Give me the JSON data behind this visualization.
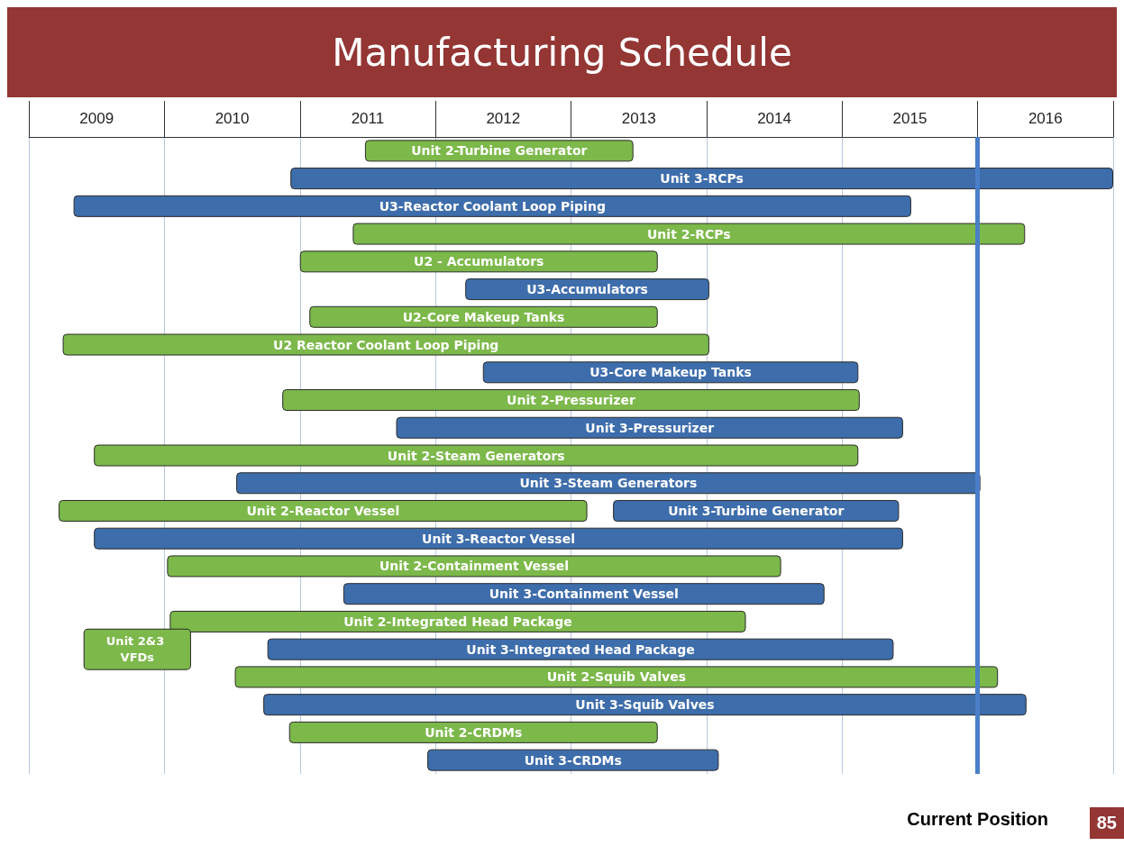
{
  "chart_data": {
    "type": "bar",
    "orientation": "horizontal",
    "title": "Manufacturing Schedule",
    "categories": [
      null,
      null,
      null,
      null,
      null,
      null,
      null,
      null,
      null,
      null,
      null,
      null,
      null,
      null,
      null,
      null,
      null,
      null,
      null,
      null,
      null,
      null,
      null
    ],
    "series": [
      {
        "color": "#7cb84a",
        "base": [
          2011.48,
          null,
          null,
          2011.39,
          2011.0,
          null,
          2011.07,
          2009.25,
          null,
          2010.87,
          null,
          2009.48,
          null,
          2009.22,
          null,
          2010.02,
          null,
          2010.04,
          2009.41,
          2010.52,
          null,
          2010.92,
          null
        ],
        "values": [
          1.98,
          null,
          null,
          4.96,
          2.64,
          null,
          2.57,
          4.77,
          null,
          4.26,
          null,
          5.64,
          null,
          3.9,
          null,
          4.53,
          null,
          4.25,
          0.78,
          5.63,
          null,
          2.72,
          null
        ],
        "value_labels": [
          "Unit 2-Turbine Generator",
          null,
          null,
          "Unit 2-RCPs",
          "U2 - Accumulators",
          null,
          "U2-Core Makeup Tanks",
          "U2 Reactor Coolant Loop Piping",
          null,
          "Unit 2-Pressurizer",
          null,
          "Unit 2-Steam Generators",
          null,
          "Unit 2-Reactor Vessel",
          null,
          "Unit 2-Containment Vessel",
          null,
          "Unit 2-Integrated Head Package",
          "Unit 2&3 VFDs",
          "Unit 2-Squib Valves",
          null,
          "Unit 2-CRDMs",
          null
        ]
      },
      {
        "color": "#3e6dab",
        "base": [
          null,
          2010.93,
          2009.33,
          null,
          null,
          2012.22,
          null,
          null,
          2012.35,
          null,
          2011.71,
          null,
          2010.53,
          2013.31,
          2009.48,
          null,
          2011.32,
          null,
          2010.76,
          null,
          2010.73,
          null,
          2011.94
        ],
        "values": [
          null,
          6.07,
          6.18,
          null,
          null,
          1.8,
          null,
          null,
          2.77,
          null,
          3.74,
          null,
          5.49,
          2.11,
          5.97,
          null,
          3.55,
          null,
          4.62,
          null,
          5.63,
          null,
          2.15
        ],
        "value_labels": [
          null,
          "Unit 3-RCPs",
          "U3-Reactor Coolant Loop Piping",
          null,
          null,
          "U3-Accumulators",
          null,
          null,
          "U3-Core Makeup Tanks",
          null,
          "Unit 3-Pressurizer",
          null,
          "Unit 3-Steam Generators",
          "Unit 3-Turbine Generator",
          "Unit 3-Reactor Vessel",
          null,
          "Unit 3-Containment Vessel",
          null,
          "Unit 3-Integrated Head Package",
          null,
          "Unit 3-Squib Valves",
          null,
          "Unit 3-CRDMs"
        ]
      }
    ],
    "xlim": [
      2009,
      2017
    ],
    "xticks": [
      {
        "value": 2009,
        "label": null
      },
      {
        "value": 2009.5,
        "label": "2009"
      },
      {
        "value": 2010,
        "label": null
      },
      {
        "value": 2010.5,
        "label": "2010"
      },
      {
        "value": 2011,
        "label": null
      },
      {
        "value": 2011.5,
        "label": "2011"
      },
      {
        "value": 2012,
        "label": null
      },
      {
        "value": 2012.5,
        "label": "2012"
      },
      {
        "value": 2013,
        "label": null
      },
      {
        "value": 2013.5,
        "label": "2013"
      },
      {
        "value": 2014,
        "label": null
      },
      {
        "value": 2014.5,
        "label": "2014"
      },
      {
        "value": 2015,
        "label": null
      },
      {
        "value": 2015.5,
        "label": "2015"
      },
      {
        "value": 2016,
        "label": null
      },
      {
        "value": 2016.5,
        "label": "2016"
      },
      {
        "value": 2017,
        "label": null
      }
    ],
    "grid": "x",
    "tick_labels": "x",
    "ref_lines": [
      {
        "axis": "x",
        "value": 2016,
        "label": "Current Position",
        "color": "#4a7fc8"
      }
    ],
    "annotations": [
      "85"
    ]
  }
}
